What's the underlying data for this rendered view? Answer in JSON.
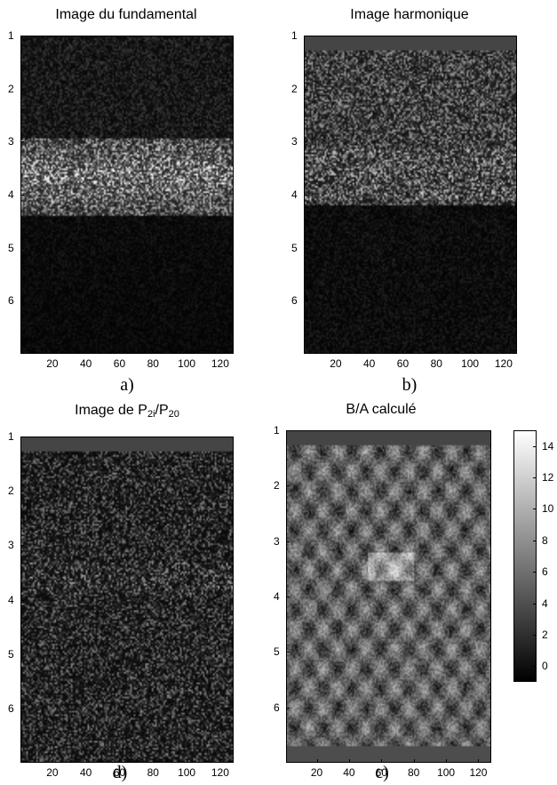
{
  "chart_data": [
    {
      "type": "heatmap",
      "panel_label": "a)",
      "title": "Image du fundamental",
      "x_ticks": [
        "20",
        "40",
        "60",
        "80",
        "100",
        "120"
      ],
      "y_ticks": [
        "1",
        "2",
        "3",
        "4",
        "5",
        "6"
      ],
      "xlim": [
        1,
        128
      ],
      "ylim": [
        1,
        7
      ],
      "colormap": "gray",
      "band_rows_top": 0
    },
    {
      "type": "heatmap",
      "panel_label": "b)",
      "title": "Image harmonique",
      "x_ticks": [
        "20",
        "40",
        "60",
        "80",
        "100",
        "120"
      ],
      "y_ticks": [
        "1",
        "2",
        "3",
        "4",
        "5",
        "6"
      ],
      "xlim": [
        1,
        128
      ],
      "ylim": [
        1,
        7
      ],
      "colormap": "gray",
      "band_rows_top": 0.25
    },
    {
      "type": "heatmap",
      "panel_label": "d)",
      "title_parts": [
        "Image de P",
        "2i",
        "/P",
        "20"
      ],
      "x_ticks": [
        "20",
        "40",
        "60",
        "80",
        "100",
        "120"
      ],
      "y_ticks": [
        "1",
        "2",
        "3",
        "4",
        "5",
        "6"
      ],
      "xlim": [
        1,
        128
      ],
      "ylim": [
        1,
        7
      ],
      "colormap": "gray",
      "band_rows_top": 0.25
    },
    {
      "type": "heatmap",
      "panel_label": "c)",
      "title": "B/A calculé",
      "x_ticks": [
        "20",
        "40",
        "60",
        "80",
        "100",
        "120"
      ],
      "y_ticks": [
        "1",
        "2",
        "3",
        "4",
        "5",
        "6"
      ],
      "xlim": [
        1,
        128
      ],
      "ylim": [
        1,
        7
      ],
      "colormap": "gray",
      "band_rows_top": 0.25,
      "colorbar_ticks": [
        "0",
        "2",
        "4",
        "6",
        "8",
        "10",
        "12",
        "14"
      ],
      "colorbar_range": [
        -1,
        15
      ]
    }
  ]
}
